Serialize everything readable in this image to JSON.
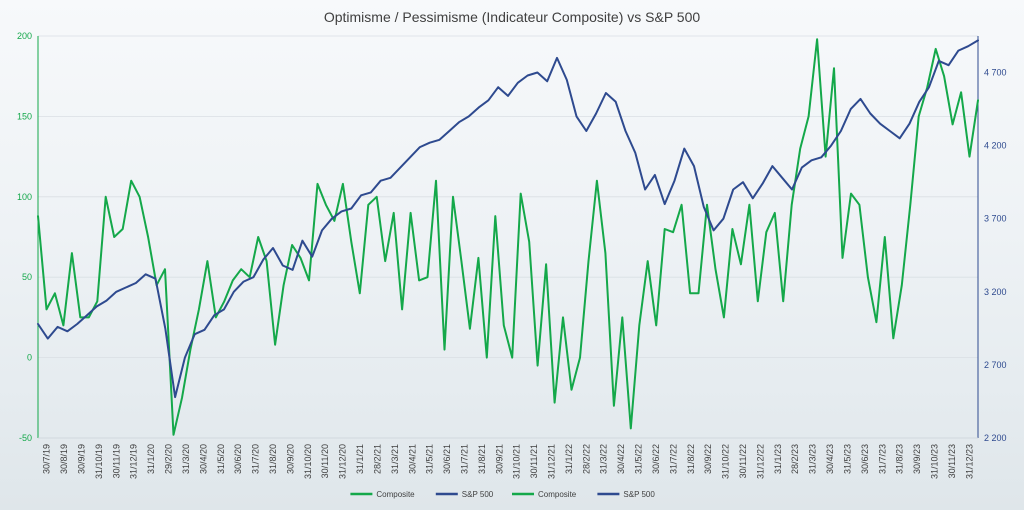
{
  "chart_data": {
    "type": "line",
    "title": "Optimisme / Pessimisme (Indicateur Composite) vs S&P 500",
    "xlabel": "",
    "ylabel_left": "",
    "ylabel_right": "",
    "left_axis": {
      "min": -50,
      "max": 200,
      "ticks": [
        "-50",
        "0",
        "50",
        "100",
        "150",
        "200"
      ],
      "color": "#14a84a"
    },
    "right_axis": {
      "min": 2200,
      "max": 4950,
      "ticks": [
        "2 200",
        "2 700",
        "3 200",
        "3 700",
        "4 200",
        "4 700"
      ],
      "color": "#2e4a8f"
    },
    "x_labels": [
      "30/7/19",
      "30/8/19",
      "30/9/19",
      "31/10/19",
      "30/11/19",
      "31/12/19",
      "31/1/20",
      "29/2/20",
      "31/3/20",
      "30/4/20",
      "31/5/20",
      "30/6/20",
      "31/7/20",
      "31/8/20",
      "30/9/20",
      "31/10/20",
      "30/11/20",
      "31/12/20",
      "31/1/21",
      "28/2/21",
      "31/3/21",
      "30/4/21",
      "31/5/21",
      "30/6/21",
      "31/7/21",
      "31/8/21",
      "30/9/21",
      "31/10/21",
      "30/11/21",
      "31/12/21",
      "31/1/22",
      "28/2/22",
      "31/3/22",
      "30/4/22",
      "31/5/22",
      "30/6/22",
      "31/7/22",
      "31/8/22",
      "30/9/22",
      "31/10/22",
      "30/11/22",
      "31/12/22",
      "31/1/23",
      "28/2/23",
      "31/3/23",
      "30/4/23",
      "31/5/23",
      "30/6/23",
      "31/7/23",
      "31/8/23",
      "30/9/23",
      "31/10/23",
      "30/11/23",
      "31/12/23"
    ],
    "series": [
      {
        "name": "Composite",
        "axis": "left",
        "color": "#14a84a",
        "values": [
          88,
          30,
          40,
          20,
          65,
          25,
          25,
          35,
          100,
          75,
          80,
          110,
          100,
          75,
          45,
          55,
          -48,
          -25,
          5,
          30,
          60,
          25,
          35,
          48,
          55,
          50,
          75,
          60,
          8,
          45,
          70,
          62,
          48,
          108,
          95,
          85,
          108,
          72,
          40,
          95,
          100,
          60,
          90,
          30,
          90,
          48,
          50,
          110,
          5,
          100,
          60,
          18,
          62,
          0,
          88,
          20,
          0,
          102,
          72,
          -5,
          58,
          -28,
          25,
          -20,
          0,
          60,
          110,
          65,
          -30,
          25,
          -44,
          20,
          60,
          20,
          80,
          78,
          95,
          40,
          40,
          95,
          55,
          25,
          80,
          58,
          95,
          35,
          78,
          90,
          35,
          95,
          130,
          150,
          198,
          125,
          180,
          62,
          102,
          95,
          50,
          22,
          75,
          12,
          45,
          95,
          150,
          168,
          192,
          175,
          145,
          165,
          125,
          160
        ]
      },
      {
        "name": "S&P 500",
        "axis": "right",
        "color": "#2e4a8f",
        "values": [
          2980,
          2880,
          2960,
          2930,
          2980,
          3040,
          3100,
          3140,
          3200,
          3230,
          3260,
          3320,
          3290,
          2950,
          2480,
          2750,
          2910,
          2940,
          3040,
          3080,
          3200,
          3270,
          3300,
          3420,
          3500,
          3380,
          3350,
          3550,
          3440,
          3620,
          3700,
          3750,
          3770,
          3860,
          3880,
          3960,
          3980,
          4050,
          4120,
          4190,
          4220,
          4240,
          4300,
          4360,
          4400,
          4460,
          4510,
          4600,
          4540,
          4630,
          4680,
          4700,
          4640,
          4800,
          4650,
          4400,
          4300,
          4420,
          4560,
          4500,
          4300,
          4150,
          3900,
          4000,
          3800,
          3960,
          4180,
          4060,
          3780,
          3620,
          3700,
          3900,
          3950,
          3840,
          3940,
          4060,
          3980,
          3900,
          4050,
          4100,
          4120,
          4200,
          4300,
          4450,
          4520,
          4420,
          4350,
          4300,
          4250,
          4350,
          4500,
          4600,
          4780,
          4750,
          4850,
          4880,
          4920
        ]
      }
    ],
    "legend": {
      "position": "bottom",
      "entries": [
        {
          "label": "Composite",
          "color": "#14a84a"
        },
        {
          "label": "S&P 500",
          "color": "#2e4a8f"
        },
        {
          "label": "Composite",
          "color": "#14a84a"
        },
        {
          "label": "S&P 500",
          "color": "#2e4a8f"
        }
      ]
    },
    "grid": true
  }
}
